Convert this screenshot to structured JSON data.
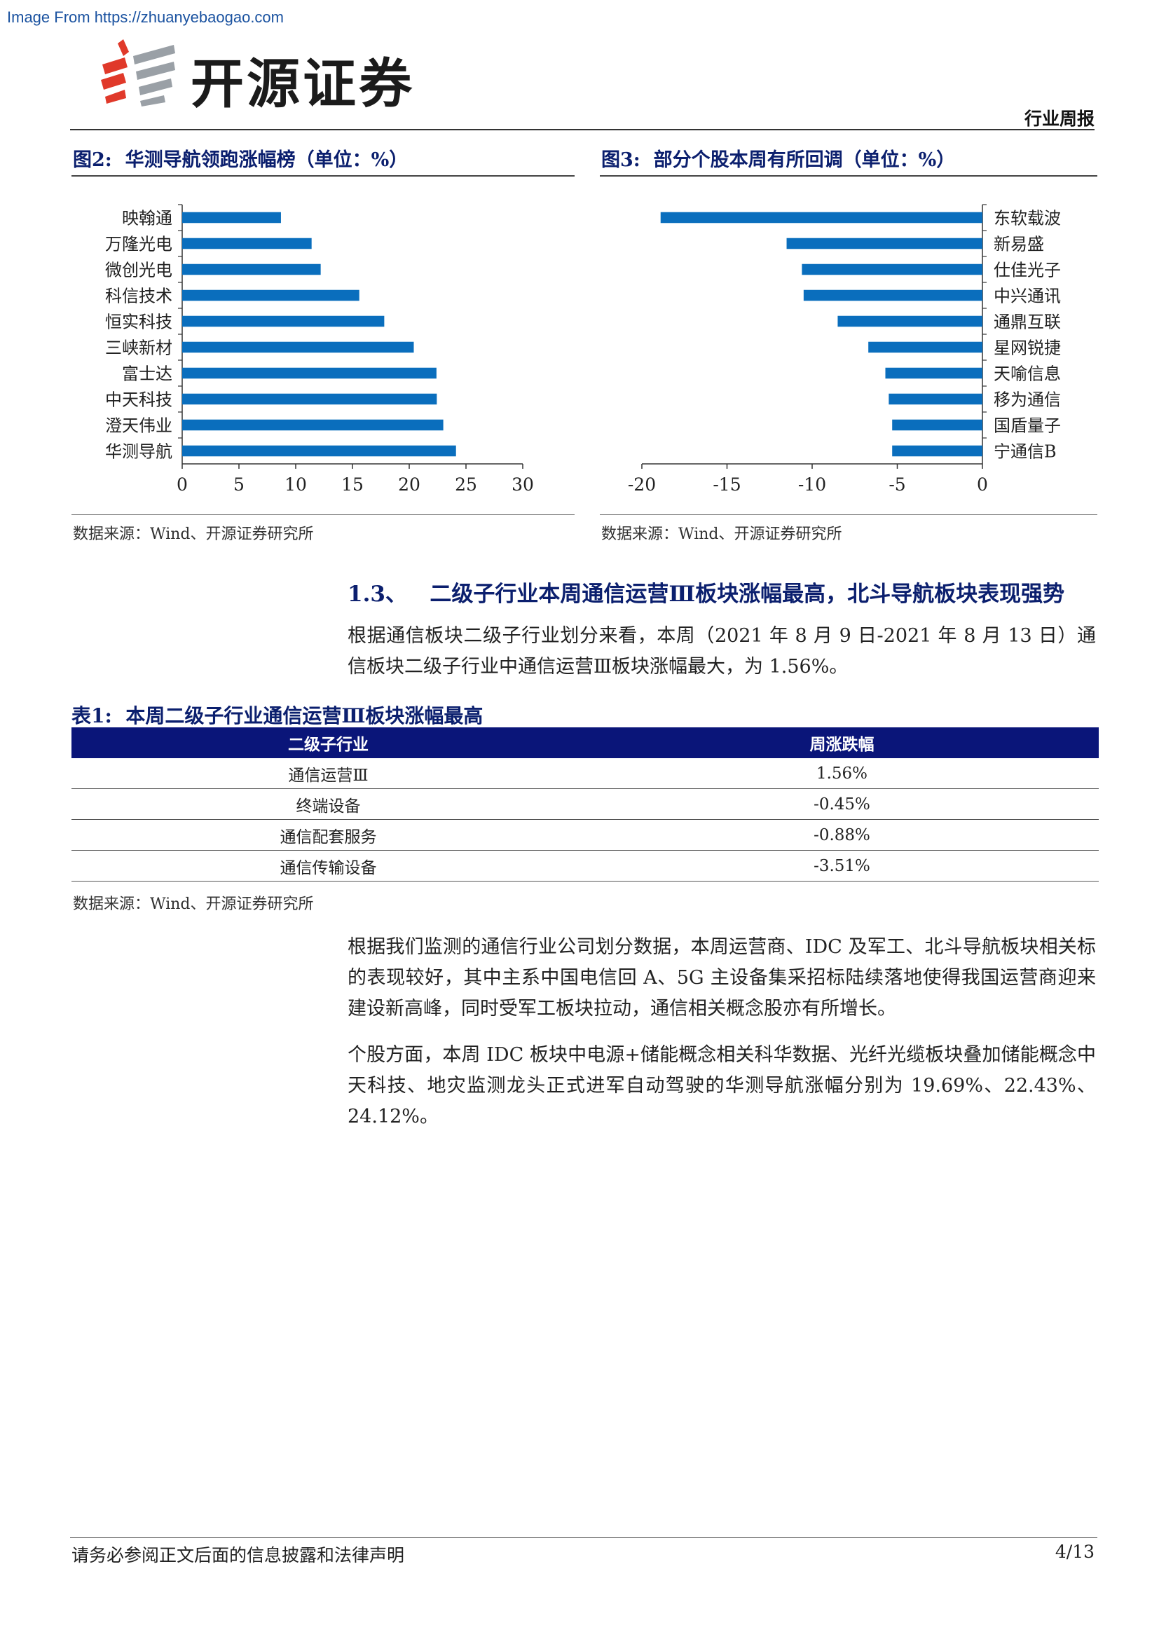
{
  "watermark": "Image From https://zhuanyebaogao.com",
  "brand": {
    "name": "开源证券"
  },
  "header": {
    "report_type": "行业周报"
  },
  "figures": [
    {
      "label": "图2:",
      "title": "华测导航领跑涨幅榜（单位：%）",
      "source": "数据来源：Wind、开源证券研究所"
    },
    {
      "label": "图3:",
      "title": "部分个股本周有所回调（单位：%）",
      "source": "数据来源：Wind、开源证券研究所"
    }
  ],
  "chart_data": [
    {
      "type": "bar",
      "orientation": "horizontal",
      "categories": [
        "映翰通",
        "万隆光电",
        "微创光电",
        "科信技术",
        "恒实科技",
        "三峡新材",
        "富士达",
        "中天科技",
        "澄天伟业",
        "华测导航"
      ],
      "values": [
        8.7,
        11.4,
        12.2,
        15.6,
        17.8,
        20.4,
        22.4,
        22.43,
        23.0,
        24.12
      ],
      "xlim": [
        0,
        30
      ],
      "xticks": [
        0,
        5,
        10,
        15,
        20,
        25,
        30
      ],
      "color": "#0a6ebd",
      "grid": false
    },
    {
      "type": "bar",
      "orientation": "horizontal",
      "categories": [
        "东软载波",
        "新易盛",
        "仕佳光子",
        "中兴通讯",
        "通鼎互联",
        "星网锐捷",
        "天喻信息",
        "移为通信",
        "国盾量子",
        "宁通信B"
      ],
      "values": [
        -18.9,
        -11.5,
        -10.6,
        -10.5,
        -8.5,
        -6.7,
        -5.7,
        -5.5,
        -5.3,
        -5.3
      ],
      "xlim": [
        -20,
        0
      ],
      "xticks": [
        -20,
        -15,
        -10,
        -5,
        0
      ],
      "color": "#0a6ebd",
      "grid": false
    }
  ],
  "section": {
    "number": "1.3、",
    "title": "二级子行业本周通信运营Ⅲ板块涨幅最高，北斗导航板块表现强势",
    "paragraph1": "根据通信板块二级子行业划分来看，本周（2021 年 8 月 9 日-2021 年 8 月 13 日）通信板块二级子行业中通信运营Ⅲ板块涨幅最大，为 1.56%。"
  },
  "table": {
    "label": "表1:",
    "title": "本周二级子行业通信运营Ⅲ板块涨幅最高",
    "headers": [
      "二级子行业",
      "周涨跌幅"
    ],
    "rows": [
      [
        "通信运营Ⅲ",
        "1.56%"
      ],
      [
        "终端设备",
        "-0.45%"
      ],
      [
        "通信配套服务",
        "-0.88%"
      ],
      [
        "通信传输设备",
        "-3.51%"
      ]
    ],
    "source": "数据来源：Wind、开源证券研究所",
    "header_bg": "#0a1579"
  },
  "paragraph2": "根据我们监测的通信行业公司划分数据，本周运营商、IDC 及军工、北斗导航板块相关标的表现较好，其中主系中国电信回 A、5G 主设备集采招标陆续落地使得我国运营商迎来建设新高峰，同时受军工板块拉动，通信相关概念股亦有所增长。",
  "paragraph3": "个股方面，本周 IDC 板块中电源+储能概念相关科华数据、光纤光缆板块叠加储能概念中天科技、地灾监测龙头正式进军自动驾驶的华测导航涨幅分别为 19.69%、22.43%、24.12%。",
  "footer": {
    "disclaimer": "请务必参阅正文后面的信息披露和法律声明",
    "page": "4/13"
  }
}
